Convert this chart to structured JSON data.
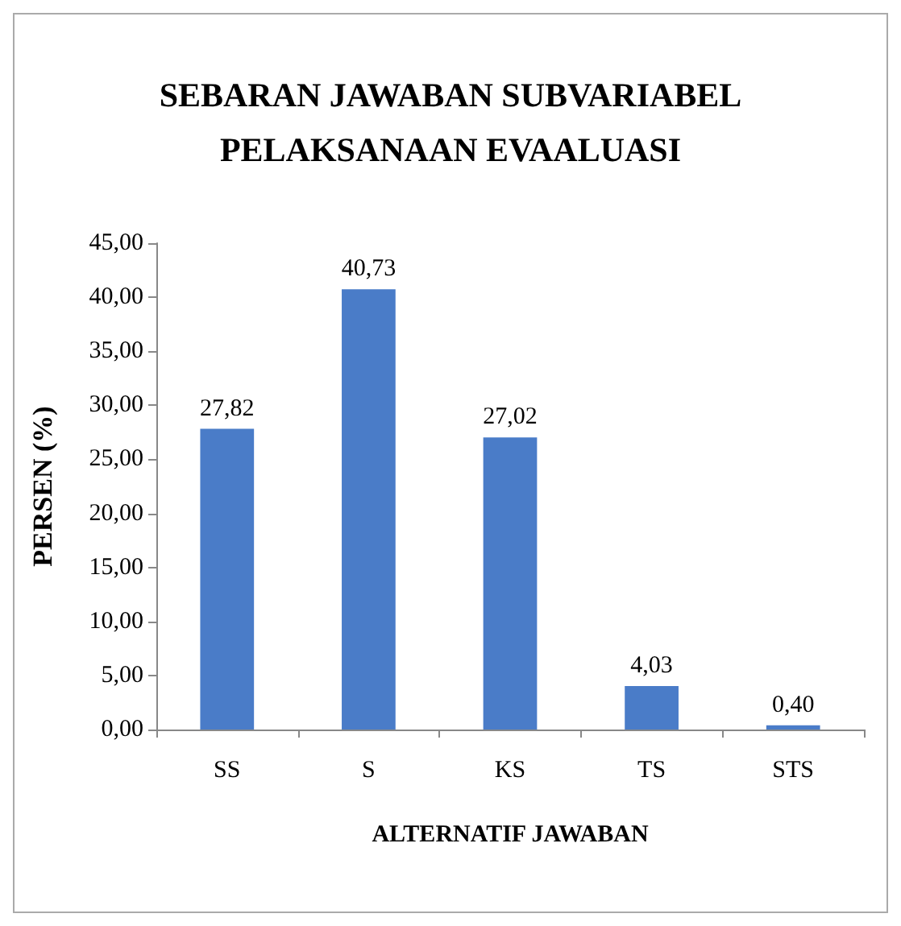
{
  "chart_data": {
    "type": "bar",
    "title": "SEBARAN JAWABAN SUBVARIABEL\nPELAKSANAAN EVAALUASI",
    "xlabel": "ALTERNATIF JAWABAN",
    "ylabel": "PERSEN (%)",
    "categories": [
      "SS",
      "S",
      "KS",
      "TS",
      "STS"
    ],
    "values": [
      27.82,
      40.73,
      27.02,
      4.03,
      0.4
    ],
    "value_labels": [
      "27,82",
      "40,73",
      "27,02",
      "4,03",
      "0,40"
    ],
    "color": "#4a7cc8",
    "ylim": [
      0,
      45
    ],
    "yticks": [
      {
        "value": 0,
        "label": "0,00"
      },
      {
        "value": 5,
        "label": "5,00"
      },
      {
        "value": 10,
        "label": "10,00"
      },
      {
        "value": 15,
        "label": "15,00"
      },
      {
        "value": 20,
        "label": "20,00"
      },
      {
        "value": 25,
        "label": "25,00"
      },
      {
        "value": 30,
        "label": "30,00"
      },
      {
        "value": 35,
        "label": "35,00"
      },
      {
        "value": 40,
        "label": "40,00"
      },
      {
        "value": 45,
        "label": "45,00"
      }
    ],
    "grid": false
  }
}
